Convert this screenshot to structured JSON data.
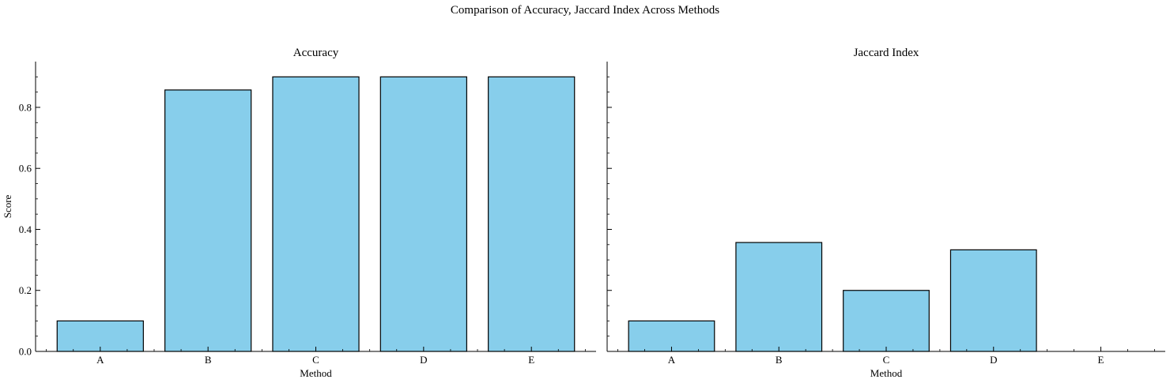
{
  "figure": {
    "title": "Comparison of Accuracy, Jaccard Index Across Methods"
  },
  "colors": {
    "bar_fill": "#87CEEB",
    "bar_edge": "#000000",
    "axis": "#000000",
    "background": "#ffffff"
  },
  "chart_data": [
    {
      "type": "bar",
      "title": "Accuracy",
      "xlabel": "Method",
      "ylabel": "Score",
      "categories": [
        "A",
        "B",
        "C",
        "D",
        "E"
      ],
      "values": [
        0.1,
        0.857,
        0.9,
        0.9,
        0.9
      ],
      "ylim": [
        0,
        0.95
      ],
      "yticks": [
        0.0,
        0.2,
        0.4,
        0.6,
        0.8
      ],
      "ytick_labels": [
        "0.0",
        "0.2",
        "0.4",
        "0.6",
        "0.8"
      ],
      "grid": false
    },
    {
      "type": "bar",
      "title": "Jaccard Index",
      "xlabel": "Method",
      "ylabel": "",
      "categories": [
        "A",
        "B",
        "C",
        "D",
        "E"
      ],
      "values": [
        0.1,
        0.357,
        0.2,
        0.333,
        0.0
      ],
      "ylim": [
        0,
        0.95
      ],
      "yticks": [
        0.0,
        0.2,
        0.4,
        0.6,
        0.8
      ],
      "ytick_labels": [],
      "grid": false
    }
  ]
}
